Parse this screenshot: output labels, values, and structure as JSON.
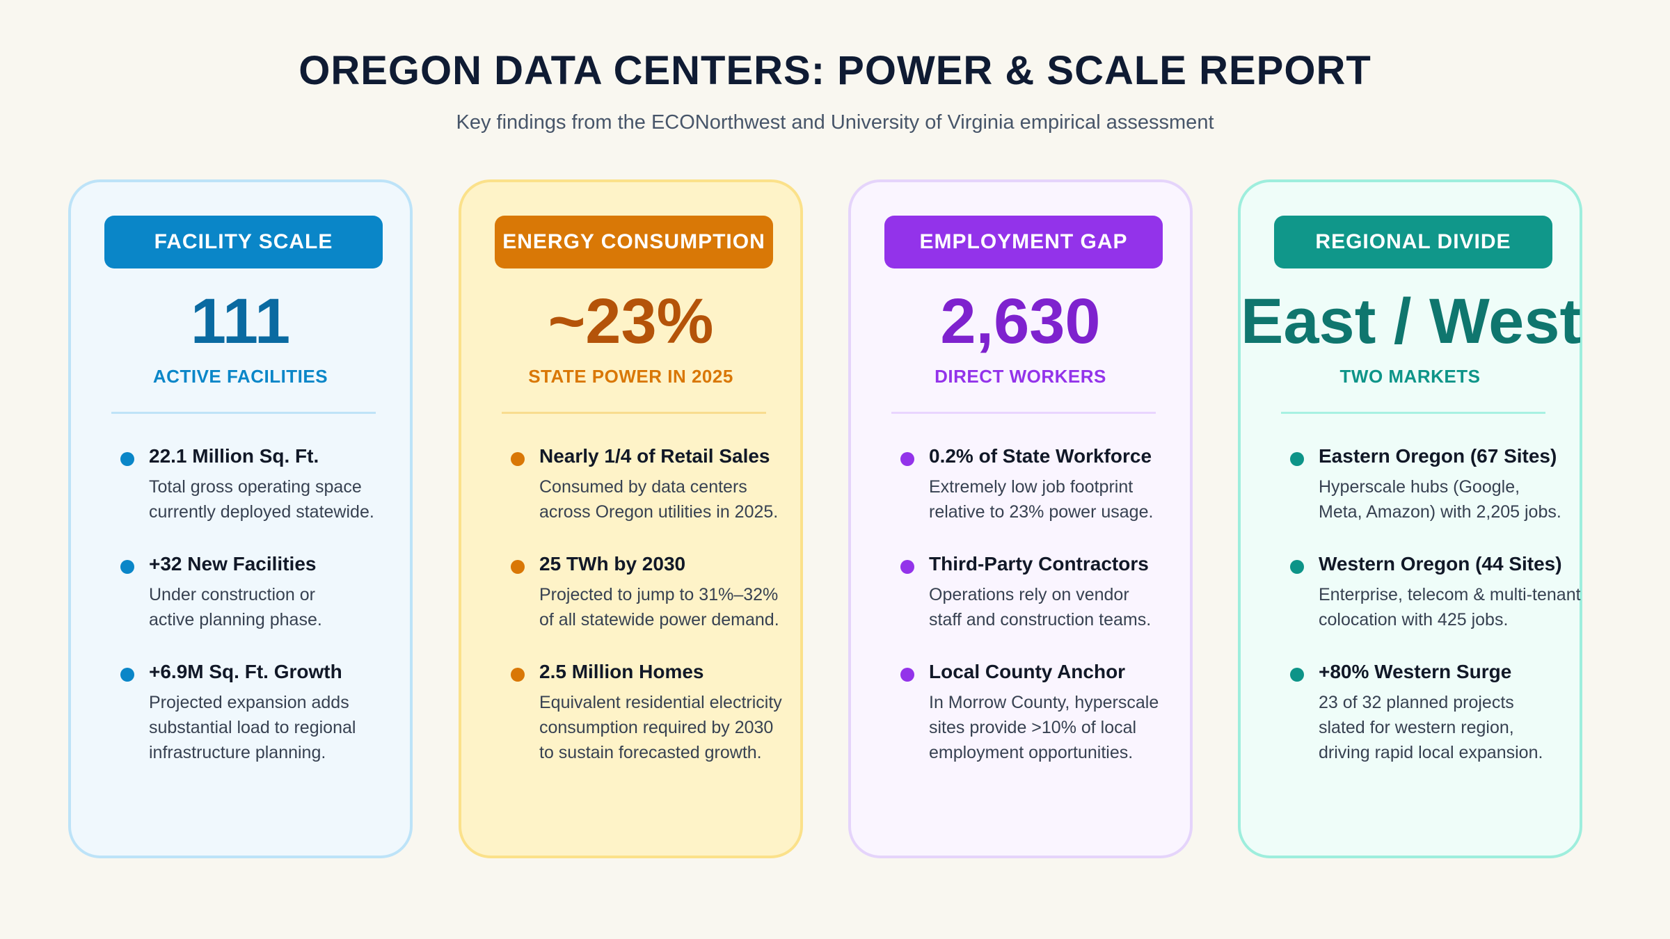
{
  "header": {
    "title": "OREGON DATA CENTERS: POWER & SCALE REPORT",
    "subtitle": "Key findings from the ECONorthwest and University of Virginia empirical assessment"
  },
  "cards": [
    {
      "badge": "FACILITY SCALE",
      "big": "111",
      "label": "ACTIVE FACILITIES",
      "accent": "#0a86c8",
      "items": [
        {
          "head": "22.1 Million Sq. Ft.",
          "body": "Total gross operating space\ncurrently deployed statewide."
        },
        {
          "head": "+32 New Facilities",
          "body": "Under construction or\nactive planning phase."
        },
        {
          "head": "+6.9M Sq. Ft. Growth",
          "body": "Projected expansion adds\nsubstantial load to regional\ninfrastructure planning."
        }
      ]
    },
    {
      "badge": "ENERGY CONSUMPTION",
      "big": "~23%",
      "label": "STATE POWER IN 2025",
      "accent": "#d97706",
      "items": [
        {
          "head": "Nearly 1/4 of Retail Sales",
          "body": "Consumed by data centers\nacross Oregon utilities in 2025."
        },
        {
          "head": "25 TWh by 2030",
          "body": "Projected to jump to 31%–32%\nof all statewide power demand."
        },
        {
          "head": "2.5 Million Homes",
          "body": "Equivalent residential electricity\nconsumption required by 2030\nto sustain forecasted growth."
        }
      ]
    },
    {
      "badge": "EMPLOYMENT GAP",
      "big": "2,630",
      "label": "DIRECT WORKERS",
      "accent": "#9333ea",
      "items": [
        {
          "head": "0.2% of State Workforce",
          "body": "Extremely low job footprint\nrelative to 23% power usage."
        },
        {
          "head": "Third-Party Contractors",
          "body": "Operations rely on vendor\nstaff and construction teams."
        },
        {
          "head": "Local County Anchor",
          "body": "In Morrow County, hyperscale\nsites provide >10% of local\nemployment opportunities."
        }
      ]
    },
    {
      "badge": "REGIONAL DIVIDE",
      "big": "East / West",
      "label": "TWO MARKETS",
      "accent": "#0d9488",
      "items": [
        {
          "head": "Eastern Oregon (67 Sites)",
          "body": "Hyperscale hubs (Google,\nMeta, Amazon) with 2,205 jobs."
        },
        {
          "head": "Western Oregon (44 Sites)",
          "body": "Enterprise, telecom & multi-tenant\ncolocation with 425 jobs."
        },
        {
          "head": "+80% Western Surge",
          "body": "23 of 32 planned projects\nslated for western region,\ndriving rapid local expansion."
        }
      ]
    }
  ]
}
